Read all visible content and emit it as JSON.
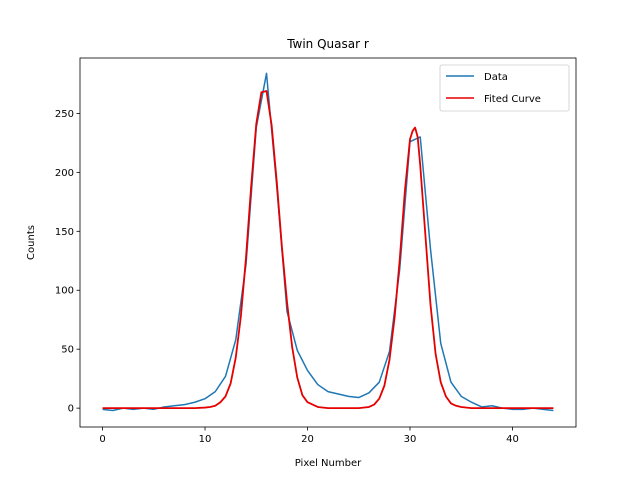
{
  "chart_data": {
    "type": "line",
    "title": "Twin Quasar r",
    "xlabel": "Pixel Number",
    "ylabel": "Counts",
    "xlim": [
      -2.2,
      46.2
    ],
    "ylim": [
      -16,
      297
    ],
    "xticks": [
      0,
      10,
      20,
      30,
      40
    ],
    "yticks": [
      0,
      50,
      100,
      150,
      200,
      250
    ],
    "grid": false,
    "legend_position": "top-right",
    "series": [
      {
        "name": "Data",
        "color": "#1f77b4",
        "x": [
          0,
          1,
          2,
          3,
          4,
          5,
          6,
          7,
          8,
          9,
          10,
          11,
          12,
          13,
          14,
          15,
          16,
          17,
          18,
          19,
          20,
          21,
          22,
          23,
          24,
          25,
          26,
          27,
          28,
          29,
          30,
          31,
          32,
          33,
          34,
          35,
          36,
          37,
          38,
          39,
          40,
          41,
          42,
          43,
          44
        ],
        "y": [
          -1,
          -2,
          0,
          -1,
          0,
          -1,
          1,
          2,
          3,
          5,
          8,
          14,
          27,
          58,
          122,
          238,
          284,
          188,
          82,
          49,
          32,
          20,
          14,
          12,
          10,
          9,
          13,
          22,
          48,
          118,
          226,
          230,
          135,
          55,
          22,
          10,
          5,
          1,
          2,
          0,
          -1,
          -1,
          0,
          -1,
          -2
        ]
      },
      {
        "name": "Fited Curve",
        "color": "#e50000",
        "x": [
          0,
          1,
          2,
          3,
          4,
          5,
          6,
          7,
          8,
          9,
          10,
          10.5,
          11,
          11.5,
          12,
          12.5,
          13,
          13.5,
          14,
          14.5,
          15,
          15.5,
          16,
          16.5,
          17,
          17.5,
          18,
          18.5,
          19,
          19.5,
          20,
          21,
          22,
          23,
          24,
          25,
          26,
          26.5,
          27,
          27.5,
          28,
          28.5,
          29,
          29.5,
          30,
          30.25,
          30.5,
          30.75,
          31,
          31.5,
          32,
          32.5,
          33,
          33.5,
          34,
          34.5,
          35,
          36,
          37,
          38,
          39,
          40,
          41,
          42,
          43,
          44
        ],
        "y": [
          0,
          0,
          0,
          0,
          0,
          0,
          0,
          0,
          0,
          0,
          0.5,
          1,
          2,
          5,
          10,
          21,
          43,
          78,
          128,
          188,
          241,
          268,
          269,
          240,
          192,
          137,
          90,
          52,
          26,
          11,
          5,
          1,
          0,
          0,
          0,
          0,
          1,
          3,
          8,
          19,
          41,
          77,
          126,
          184,
          228,
          235,
          238,
          230,
          206,
          147,
          88,
          46,
          22,
          10,
          4,
          2,
          1,
          0,
          0,
          0,
          0,
          0,
          0,
          0,
          0,
          0
        ]
      }
    ]
  }
}
